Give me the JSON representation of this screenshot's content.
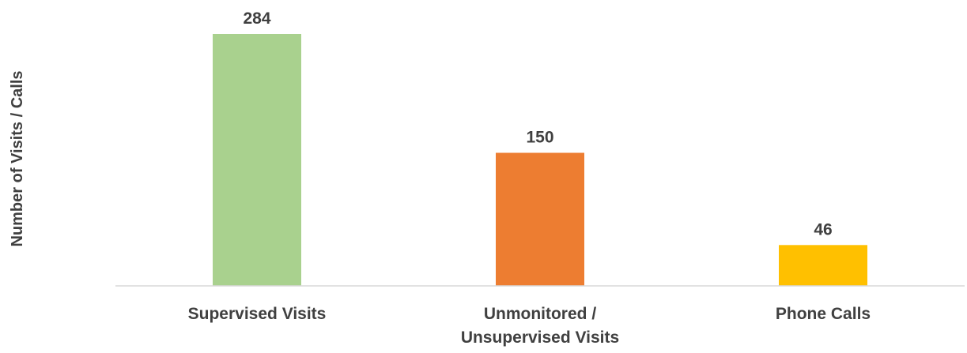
{
  "chart_data": {
    "type": "bar",
    "categories": [
      [
        "Supervised Visits"
      ],
      [
        "Unmonitored /",
        "Unsupervised Visits"
      ],
      [
        "Phone Calls"
      ]
    ],
    "values": [
      284,
      150,
      46
    ],
    "data_labels": [
      "284",
      "150",
      "46"
    ],
    "colors": [
      "#A9D18E",
      "#ED7D31",
      "#FFC000"
    ],
    "title": "",
    "xlabel": "",
    "ylabel": "Number of Visits / Calls",
    "ylim": [
      0,
      284
    ],
    "grid": false,
    "legend": "none"
  },
  "colors": {
    "baseline": "#D9D9D9",
    "text": "#404040"
  }
}
